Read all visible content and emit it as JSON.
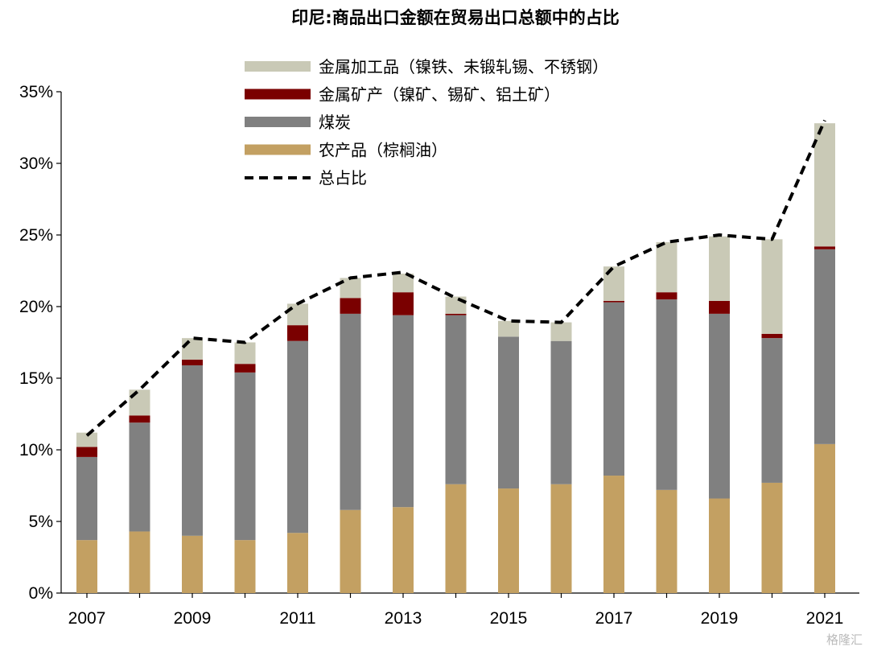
{
  "colors": {
    "agri": "#C3A062",
    "coal": "#808080",
    "ore": "#7A0000",
    "metal": "#C9C9B6",
    "total_line": "#000000"
  },
  "chart_data": {
    "type": "bar",
    "stacked": true,
    "title": "印尼:商品出口金额在贸易出口总额中的占比",
    "xlabel": "",
    "ylabel": "",
    "ylim": [
      0,
      35
    ],
    "y_ticks": [
      "0%",
      "5%",
      "10%",
      "15%",
      "20%",
      "25%",
      "30%",
      "35%"
    ],
    "x_tick_labels": [
      "2007",
      "2009",
      "2011",
      "2013",
      "2015",
      "2017",
      "2019",
      "2021"
    ],
    "categories": [
      "2007",
      "2008",
      "2009",
      "2010",
      "2011",
      "2012",
      "2013",
      "2014",
      "2015",
      "2016",
      "2017",
      "2018",
      "2019",
      "2020",
      "2021"
    ],
    "series": [
      {
        "name": "农产品（棕榈油）",
        "color_key": "agri",
        "values": [
          3.7,
          4.3,
          4.0,
          3.7,
          4.2,
          5.8,
          6.0,
          7.6,
          7.3,
          7.6,
          8.2,
          7.2,
          6.6,
          7.7,
          10.4
        ]
      },
      {
        "name": "煤炭",
        "color_key": "coal",
        "values": [
          5.8,
          7.6,
          11.9,
          11.7,
          13.4,
          13.7,
          13.4,
          11.8,
          10.6,
          10.0,
          12.1,
          13.3,
          12.9,
          10.1,
          13.6
        ]
      },
      {
        "name": "金属矿产（镍矿、锡矿、铝土矿）",
        "color_key": "ore",
        "values": [
          0.7,
          0.5,
          0.4,
          0.6,
          1.1,
          1.1,
          1.6,
          0.1,
          0.0,
          0.0,
          0.1,
          0.5,
          0.9,
          0.3,
          0.2
        ]
      },
      {
        "name": "金属加工品（镍铁、未锻轧锡、不锈钢）",
        "color_key": "metal",
        "values": [
          1.0,
          1.8,
          1.5,
          1.5,
          1.5,
          1.4,
          1.3,
          1.2,
          1.1,
          1.3,
          2.4,
          3.5,
          4.5,
          6.6,
          8.6
        ]
      }
    ],
    "total_line": {
      "name": "总占比",
      "values": [
        11.0,
        14.2,
        17.8,
        17.5,
        20.2,
        22.0,
        22.4,
        20.6,
        19.0,
        18.9,
        22.8,
        24.5,
        25.0,
        24.7,
        33.0
      ]
    },
    "legend": {
      "placement": "top-center",
      "order": [
        "金属加工品（镍铁、未锻轧锡、不锈钢）",
        "金属矿产（镍矿、锡矿、铝土矿）",
        "煤炭",
        "农产品（棕榈油）",
        "总占比"
      ]
    }
  },
  "watermark": "格隆汇"
}
